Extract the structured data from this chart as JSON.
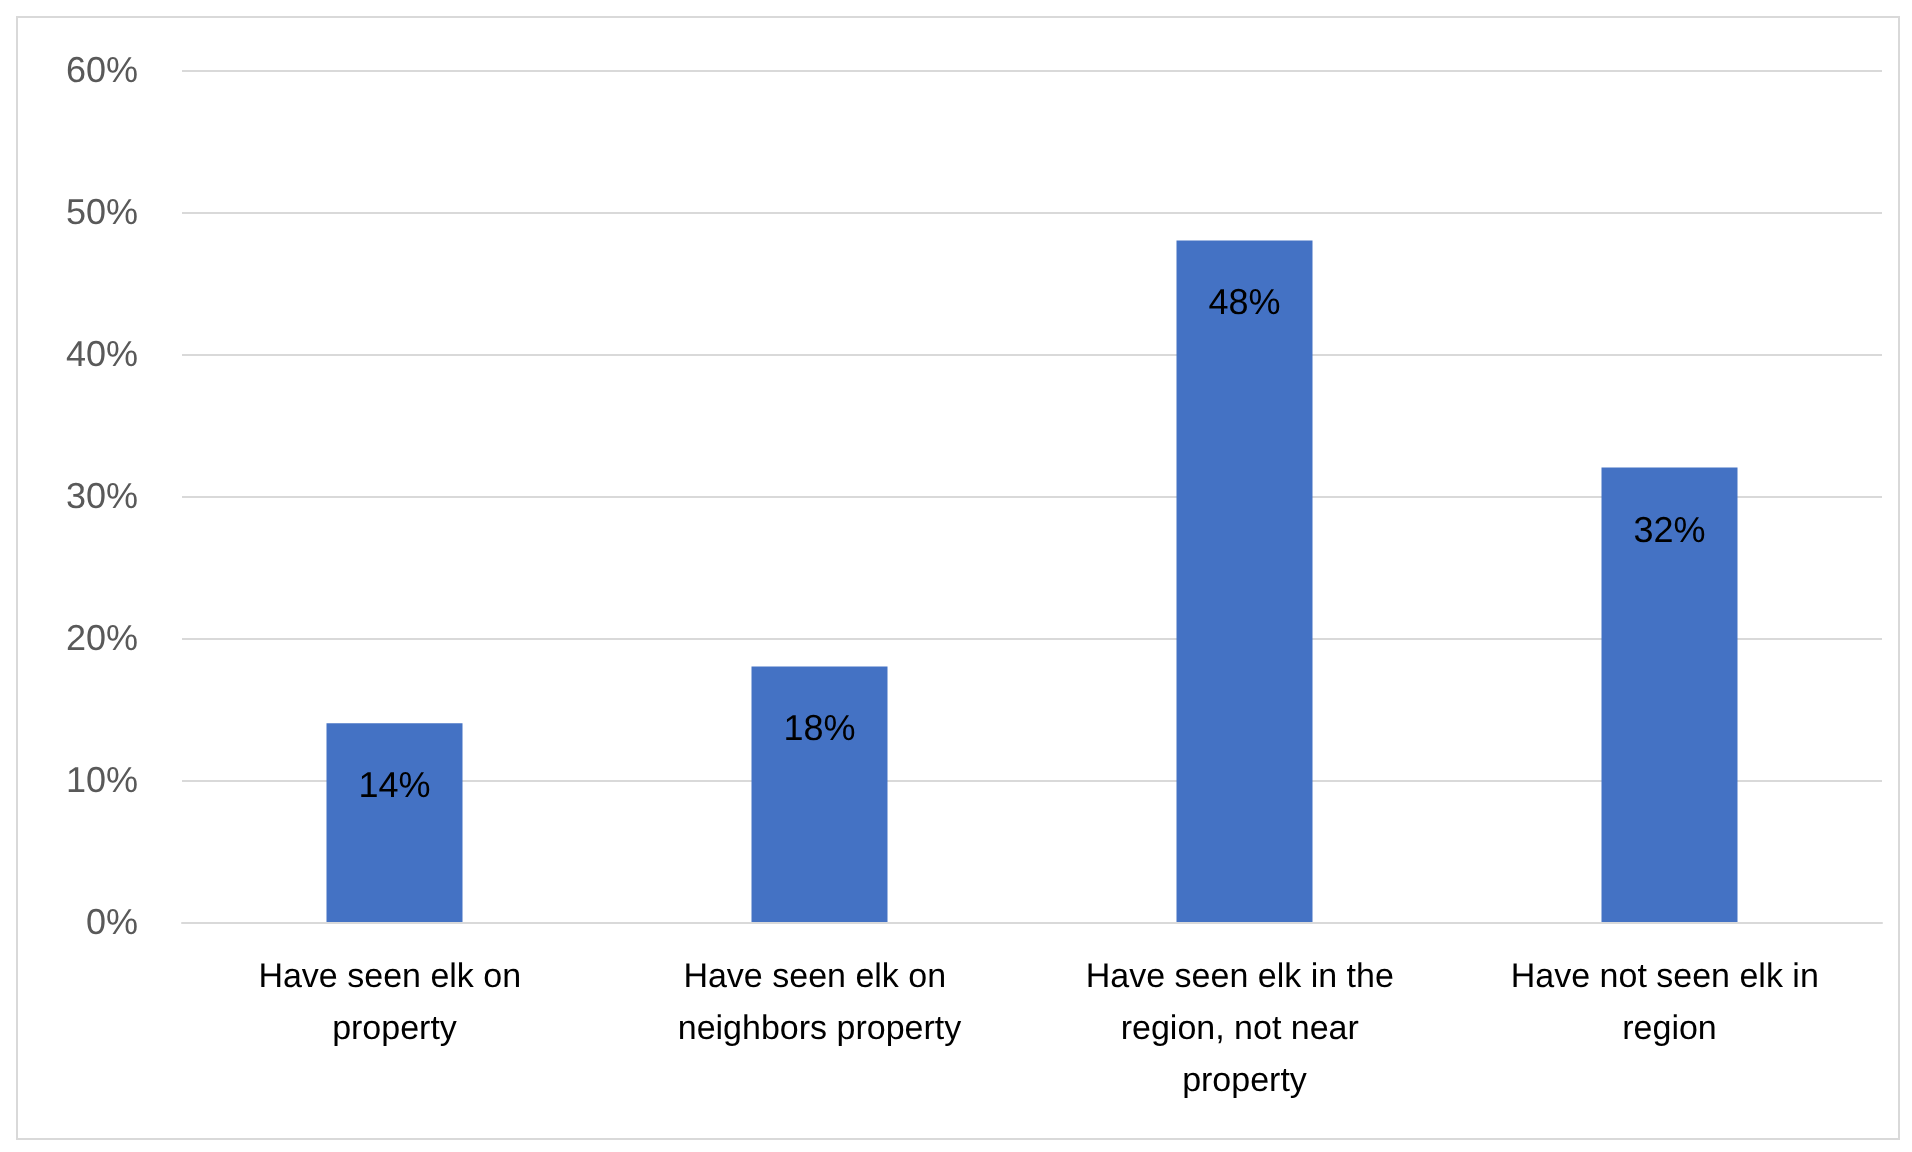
{
  "chart_data": {
    "type": "bar",
    "categories": [
      "Have seen elk on property",
      "Have seen elk on neighbors property",
      "Have seen elk in the region, not near property",
      "Have not seen elk in region"
    ],
    "values": [
      14,
      18,
      48,
      32
    ],
    "value_labels": [
      "14%",
      "18%",
      "48%",
      "32%"
    ],
    "color": "#4472c4",
    "ylim": [
      0,
      60
    ],
    "yticks": [
      {
        "value": 0,
        "label": "0%"
      },
      {
        "value": 10,
        "label": "10%"
      },
      {
        "value": 20,
        "label": "20%"
      },
      {
        "value": 30,
        "label": "30%"
      },
      {
        "value": 40,
        "label": "40%"
      },
      {
        "value": 50,
        "label": "50%"
      },
      {
        "value": 60,
        "label": "60%"
      }
    ],
    "grid": "y"
  }
}
